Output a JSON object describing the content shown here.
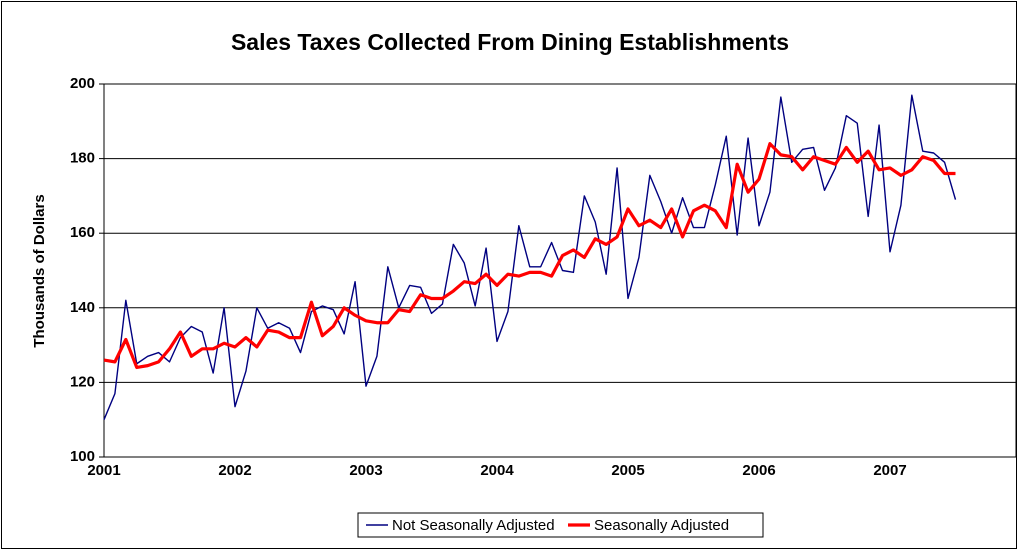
{
  "chart_data": {
    "type": "line",
    "title": "Sales Taxes Collected From Dining Establishments",
    "y_label": "Thousands of Dollars",
    "categories": [
      "2001",
      null,
      null,
      null,
      null,
      null,
      null,
      null,
      null,
      null,
      null,
      null,
      "2002",
      null,
      null,
      null,
      null,
      null,
      null,
      null,
      null,
      null,
      null,
      null,
      "2003",
      null,
      null,
      null,
      null,
      null,
      null,
      null,
      null,
      null,
      null,
      null,
      "2004",
      null,
      null,
      null,
      null,
      null,
      null,
      null,
      null,
      null,
      null,
      null,
      "2005",
      null,
      null,
      null,
      null,
      null,
      null,
      null,
      null,
      null,
      null,
      null,
      "2006",
      null,
      null,
      null,
      null,
      null,
      null,
      null,
      null,
      null,
      null,
      null,
      "2007",
      null,
      null,
      null,
      null,
      null,
      null
    ],
    "series": [
      {
        "name": "Not Seasonally Adjusted",
        "color": "#000080",
        "values": [
          110,
          117,
          142,
          125,
          127,
          128,
          125.5,
          132,
          135,
          133.5,
          122.5,
          140,
          113.5,
          123,
          140,
          134.5,
          136,
          134.5,
          128,
          139,
          140.5,
          139.5,
          133,
          147,
          119,
          127,
          151,
          140,
          146,
          145.5,
          138.5,
          141,
          157,
          152,
          140.5,
          156,
          131,
          139,
          162,
          151,
          151,
          157.5,
          150,
          149.5,
          170,
          163,
          149,
          177.5,
          142.5,
          153.5,
          175.5,
          168.5,
          160,
          169.5,
          161.5,
          161.5,
          173,
          186,
          159.5,
          185.5,
          162,
          171,
          196.5,
          179,
          182.5,
          183,
          171.5,
          177.5,
          191.5,
          189.5,
          164.5,
          189,
          155,
          167.5,
          197,
          182,
          181.5,
          179,
          169
        ]
      },
      {
        "name": "Seasonally Adjusted",
        "color": "#ff0000",
        "values": [
          126,
          125.5,
          131.5,
          124,
          124.5,
          125.5,
          129,
          133.5,
          127,
          129,
          129,
          130.5,
          129.5,
          132,
          129.5,
          134,
          133.5,
          132,
          132,
          141.5,
          132.5,
          135,
          140,
          138,
          136.5,
          136,
          136,
          139.5,
          139,
          143.5,
          142.5,
          142.5,
          144.5,
          147,
          146.5,
          149,
          146,
          149,
          148.5,
          149.5,
          149.5,
          148.5,
          154,
          155.5,
          153.5,
          158.5,
          157,
          159,
          166.5,
          162,
          163.5,
          161.5,
          166.5,
          159,
          166,
          167.5,
          166,
          161.5,
          178.5,
          171,
          174.5,
          184,
          181,
          180.5,
          177,
          180.5,
          179.5,
          178.5,
          183,
          179,
          182,
          177,
          177.5,
          175.5,
          177,
          180.5,
          179.5,
          176,
          176
        ]
      }
    ],
    "ylim": [
      100,
      200
    ],
    "yticks": [
      100,
      120,
      140,
      160,
      180,
      200
    ],
    "grid": true
  }
}
